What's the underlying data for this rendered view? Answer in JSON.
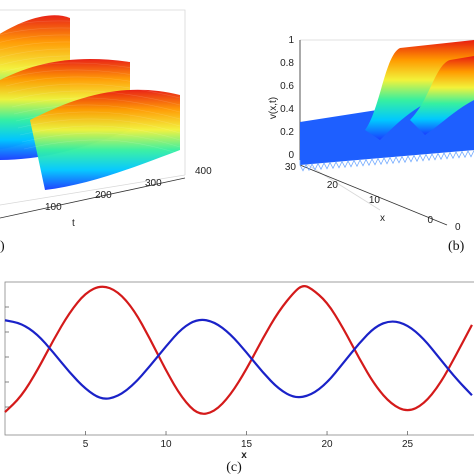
{
  "chart_data": [
    {
      "panel": "a",
      "type": "surface",
      "caption": ")",
      "xlabel": "t",
      "x_ticks": [
        "100",
        "200",
        "300",
        "400"
      ],
      "colormap": [
        "#1a3cff",
        "#00c8ff",
        "#37f0a0",
        "#f2f23a",
        "#ff9a00",
        "#e81c10"
      ]
    },
    {
      "panel": "b",
      "type": "surface",
      "caption": "(b)",
      "zlabel": "v(x,t)",
      "xlabel": "x",
      "z_ticks": [
        "1",
        "0.8",
        "0.6",
        "0.4",
        "0.2",
        "0"
      ],
      "x_ticks": [
        "30",
        "20",
        "10",
        "0"
      ],
      "t_ticks": [
        "0"
      ],
      "colormap": [
        "#1a3cff",
        "#00c8ff",
        "#37f0a0",
        "#f2f23a",
        "#ff9a00",
        "#e81c10"
      ]
    },
    {
      "panel": "c",
      "type": "line",
      "caption": "(c)",
      "xlabel": "x",
      "x_ticks": [
        5,
        10,
        15,
        20,
        25
      ],
      "xlim": [
        0,
        29.5
      ],
      "ylim": [
        0,
        1
      ],
      "series": [
        {
          "color": "#d41a1a",
          "points": [
            [
              0,
              0.15
            ],
            [
              1,
              0.25
            ],
            [
              2,
              0.42
            ],
            [
              3,
              0.62
            ],
            [
              4,
              0.8
            ],
            [
              5,
              0.93
            ],
            [
              6,
              0.98
            ],
            [
              7,
              0.94
            ],
            [
              8,
              0.82
            ],
            [
              9,
              0.63
            ],
            [
              10,
              0.42
            ],
            [
              11,
              0.24
            ],
            [
              12,
              0.13
            ],
            [
              13,
              0.15
            ],
            [
              14,
              0.26
            ],
            [
              15,
              0.43
            ],
            [
              16,
              0.63
            ],
            [
              17,
              0.81
            ],
            [
              18,
              0.94
            ],
            [
              18.5,
              0.98
            ],
            [
              19,
              0.96
            ],
            [
              20,
              0.87
            ],
            [
              21,
              0.7
            ],
            [
              22,
              0.5
            ],
            [
              23,
              0.32
            ],
            [
              24,
              0.2
            ],
            [
              25,
              0.15
            ],
            [
              26,
              0.2
            ],
            [
              27,
              0.33
            ],
            [
              28,
              0.52
            ],
            [
              29,
              0.72
            ]
          ]
        },
        {
          "color": "#1a22c8",
          "points": [
            [
              0,
              0.75
            ],
            [
              1,
              0.73
            ],
            [
              2,
              0.66
            ],
            [
              3,
              0.54
            ],
            [
              4,
              0.41
            ],
            [
              5,
              0.3
            ],
            [
              6,
              0.23
            ],
            [
              7,
              0.25
            ],
            [
              8,
              0.33
            ],
            [
              9,
              0.45
            ],
            [
              10,
              0.58
            ],
            [
              11,
              0.7
            ],
            [
              12,
              0.76
            ],
            [
              13,
              0.74
            ],
            [
              14,
              0.66
            ],
            [
              15,
              0.54
            ],
            [
              16,
              0.41
            ],
            [
              17,
              0.3
            ],
            [
              18,
              0.24
            ],
            [
              19,
              0.26
            ],
            [
              20,
              0.34
            ],
            [
              21,
              0.47
            ],
            [
              22,
              0.6
            ],
            [
              23,
              0.71
            ],
            [
              24,
              0.75
            ],
            [
              25,
              0.72
            ],
            [
              26,
              0.63
            ],
            [
              27,
              0.5
            ],
            [
              28,
              0.37
            ],
            [
              29,
              0.26
            ]
          ]
        }
      ]
    }
  ]
}
